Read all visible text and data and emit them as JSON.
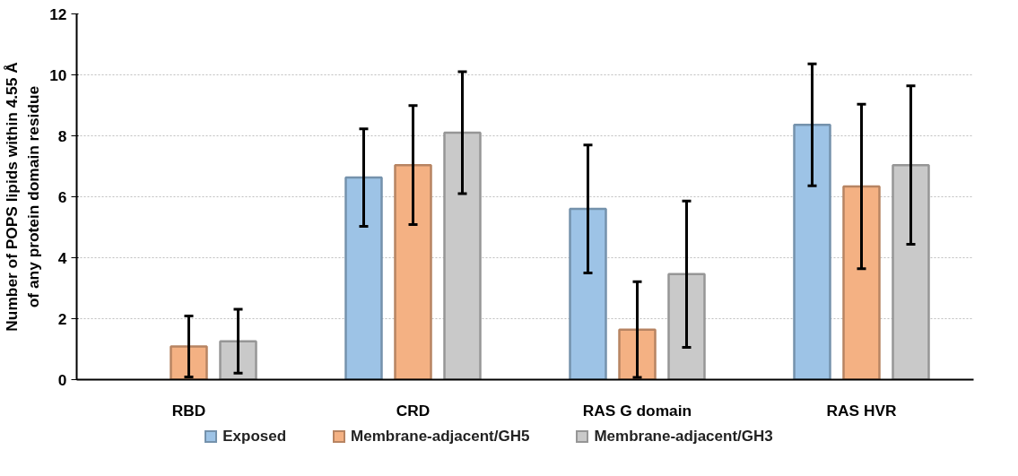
{
  "chart_data": {
    "type": "bar",
    "ylabel": "Number of POPS lipids within 4.55 Å of any protein domain residue",
    "categories": [
      "RBD",
      "CRD",
      "RAS G domain",
      "RAS HVR"
    ],
    "series": [
      {
        "name": "Exposed",
        "color": "#9dc3e6",
        "values": [
          0,
          6.63,
          5.6,
          8.36
        ],
        "errors": [
          null,
          1.6,
          2.1,
          2.0
        ]
      },
      {
        "name": "Membrane-adjacent/GH5",
        "color": "#f4b183",
        "values": [
          1.09,
          7.04,
          1.64,
          6.34
        ],
        "errors": [
          1.0,
          1.95,
          1.57,
          2.7
        ]
      },
      {
        "name": "Membrane-adjacent/GH3",
        "color": "#c9c9c9",
        "values": [
          1.26,
          8.1,
          3.46,
          7.04
        ],
        "errors": [
          1.05,
          2.0,
          2.4,
          2.6
        ]
      }
    ],
    "ylim": [
      0,
      12
    ],
    "yticks": [
      0,
      2,
      4,
      6,
      8,
      10,
      12
    ],
    "grid": "y",
    "legend": "bottom"
  }
}
